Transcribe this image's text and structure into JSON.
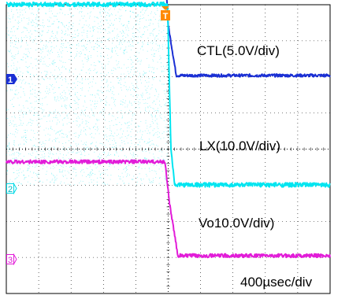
{
  "chart_data": {
    "type": "line",
    "title": "",
    "xlabel": "",
    "ylabel": "",
    "time_scale": "400µsec/div",
    "trigger_marker": "T",
    "grid": "dotted 10x8 divisions",
    "series": [
      {
        "name": "CTL(5.0V/div)",
        "channel_marker": "1",
        "color": "#1a2fd4",
        "x": [
          -5,
          -0.15,
          0,
          0.25,
          5
        ],
        "y": [
          4.1,
          4.1,
          1.5,
          0.1,
          0.1
        ],
        "noise": 0.04
      },
      {
        "name": "LX(10.0V/div)",
        "channel_marker": "2",
        "color": "#00e5f0",
        "x": [
          -5,
          -0.02,
          0.08,
          0.2,
          5
        ],
        "y": [
          5.1,
          5.1,
          1.2,
          0.1,
          0.1
        ],
        "noise": 0.06,
        "switching_band": [
          0.1,
          5.1
        ]
      },
      {
        "name": "Vo10.0V/div)",
        "channel_marker": "3",
        "color": "#e21cd8",
        "x": [
          -5,
          -0.1,
          0.05,
          0.3,
          5
        ],
        "y": [
          2.7,
          2.7,
          1.5,
          0.1,
          0.1
        ],
        "noise": 0.05
      }
    ]
  },
  "marker_colors": {
    "ch1": "#1a2fd4",
    "ch2": "#00d9e6",
    "ch3": "#e21cd8",
    "trigger": "#ff8a00"
  }
}
